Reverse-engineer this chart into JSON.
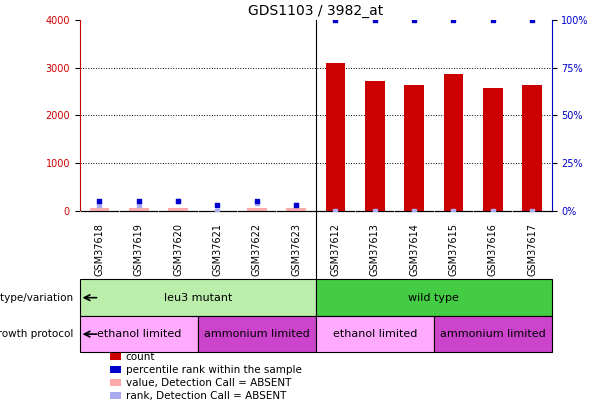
{
  "title": "GDS1103 / 3982_at",
  "samples": [
    "GSM37618",
    "GSM37619",
    "GSM37620",
    "GSM37621",
    "GSM37622",
    "GSM37623",
    "GSM37612",
    "GSM37613",
    "GSM37614",
    "GSM37615",
    "GSM37616",
    "GSM37617"
  ],
  "counts": [
    0,
    0,
    50,
    0,
    30,
    0,
    3100,
    2720,
    2640,
    2880,
    2580,
    2640
  ],
  "percentile_ranks": [
    5,
    5,
    5,
    3,
    5,
    3,
    100,
    100,
    100,
    100,
    100,
    100
  ],
  "absent_counts": [
    50,
    50,
    50,
    0,
    50,
    50,
    0,
    0,
    0,
    0,
    0,
    0
  ],
  "absent_ranks": [
    3,
    3,
    5,
    0,
    4,
    3,
    0,
    0,
    0,
    0,
    0,
    0
  ],
  "ylim_left": [
    0,
    4000
  ],
  "ylim_right": [
    0,
    100
  ],
  "yticks_left": [
    0,
    1000,
    2000,
    3000,
    4000
  ],
  "yticks_right": [
    0,
    25,
    50,
    75,
    100
  ],
  "bar_color": "#cc0000",
  "rank_color": "#0000cc",
  "absent_count_color": "#ffaaaa",
  "absent_rank_color": "#aaaaee",
  "plot_bg_color": "#ffffff",
  "xlabel_bg_color": "#cccccc",
  "grid_color": "#555555",
  "genotype_groups": [
    {
      "label": "leu3 mutant",
      "start": 0,
      "end": 6,
      "color": "#bbeeaa"
    },
    {
      "label": "wild type",
      "start": 6,
      "end": 12,
      "color": "#44cc44"
    }
  ],
  "protocol_groups": [
    {
      "label": "ethanol limited",
      "start": 0,
      "end": 3,
      "color": "#ffaaff"
    },
    {
      "label": "ammonium limited",
      "start": 3,
      "end": 6,
      "color": "#cc44cc"
    },
    {
      "label": "ethanol limited",
      "start": 6,
      "end": 9,
      "color": "#ffaaff"
    },
    {
      "label": "ammonium limited",
      "start": 9,
      "end": 12,
      "color": "#cc44cc"
    }
  ],
  "legend_items": [
    {
      "label": "count",
      "color": "#cc0000"
    },
    {
      "label": "percentile rank within the sample",
      "color": "#0000cc"
    },
    {
      "label": "value, Detection Call = ABSENT",
      "color": "#ffaaaa"
    },
    {
      "label": "rank, Detection Call = ABSENT",
      "color": "#aaaaee"
    }
  ],
  "title_fontsize": 10,
  "tick_fontsize": 7,
  "label_fontsize": 8,
  "sample_fontsize": 7
}
